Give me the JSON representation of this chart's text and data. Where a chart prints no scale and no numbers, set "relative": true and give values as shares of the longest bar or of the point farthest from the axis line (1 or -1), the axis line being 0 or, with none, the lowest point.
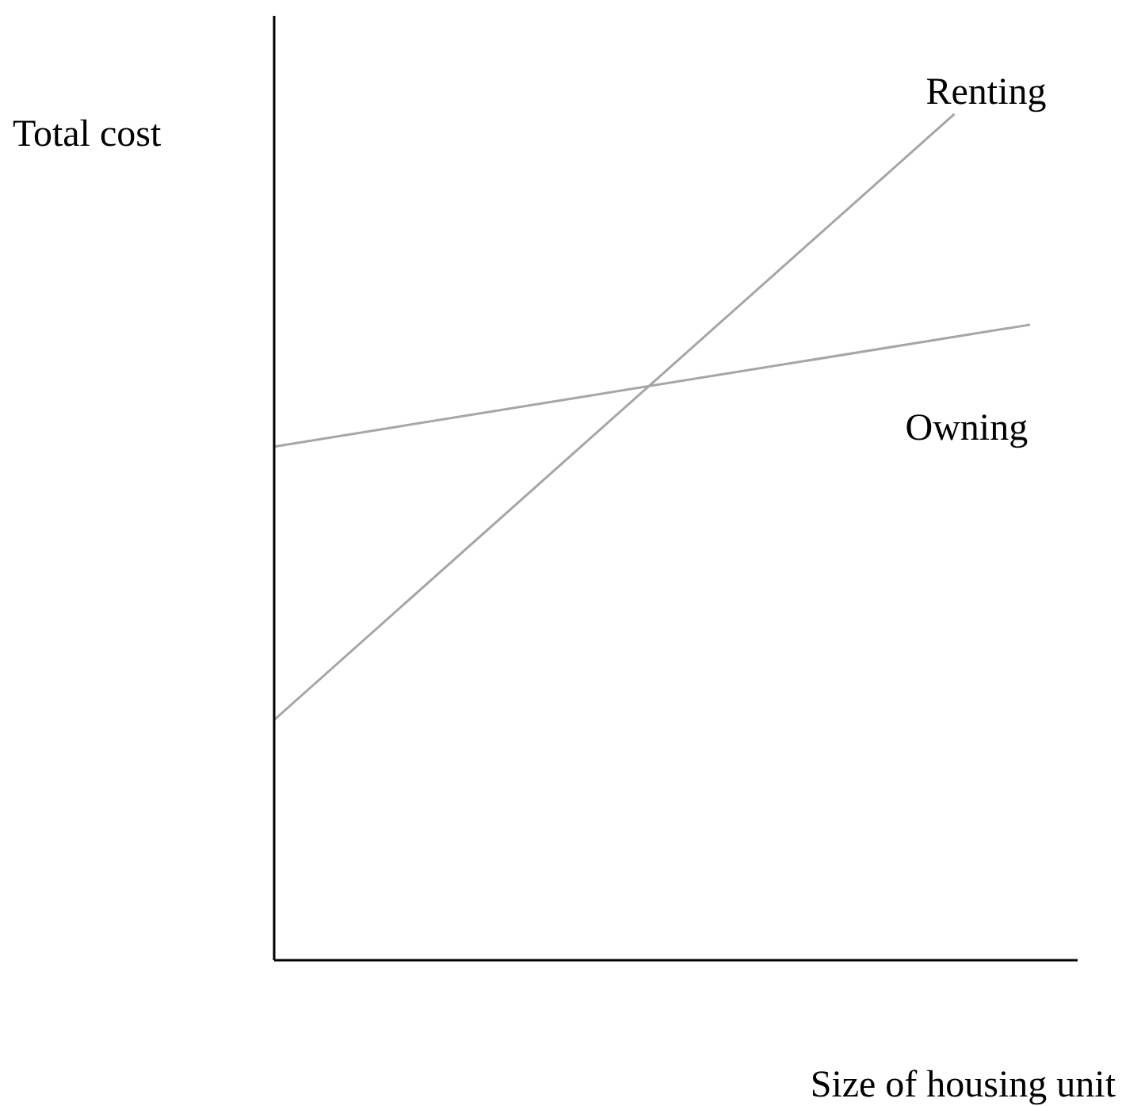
{
  "chart_data": {
    "type": "line",
    "relative": true,
    "xlabel": "Size of housing unit",
    "ylabel": "Total cost",
    "marker": "none",
    "legend": false,
    "grid": false,
    "categories": [
      null,
      null,
      null,
      null,
      null,
      null,
      null,
      null,
      null,
      null,
      null
    ],
    "series": [
      {
        "name": "Renting",
        "color": "#a6a6a6",
        "values": [
          0.284,
          null,
          null,
          null,
          null,
          null,
          null,
          null,
          null,
          1,
          null
        ]
      },
      {
        "name": "Owning",
        "color": "#a6a6a6",
        "values": [
          0.607,
          null,
          null,
          null,
          null,
          null,
          null,
          null,
          null,
          null,
          0.751
        ]
      }
    ]
  }
}
